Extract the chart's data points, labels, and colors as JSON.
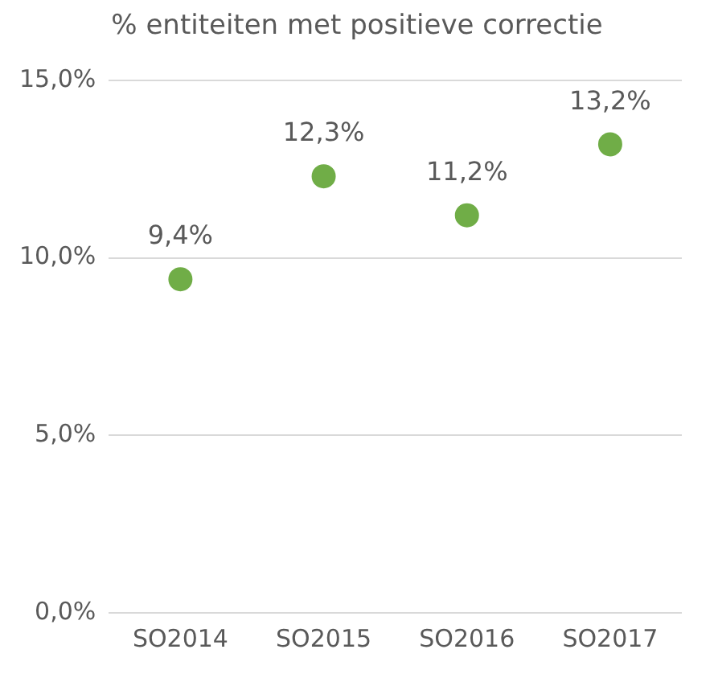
{
  "chart_data": {
    "type": "scatter",
    "title": "% entiteiten met positieve correctie",
    "categories": [
      "SO2014",
      "SO2015",
      "SO2016",
      "SO2017"
    ],
    "values": [
      9.4,
      12.3,
      11.2,
      13.2
    ],
    "value_labels": [
      "9,4%",
      "12,3%",
      "11,2%",
      "13,2%"
    ],
    "color": "#70ad47",
    "marker": "circle",
    "ylim": [
      0,
      15
    ],
    "yticks": [
      {
        "value": 0,
        "label": "0,0%"
      },
      {
        "value": 5,
        "label": "5,0%"
      },
      {
        "value": 10,
        "label": "10,0%"
      },
      {
        "value": 15,
        "label": "15,0%"
      }
    ],
    "grid": "y"
  }
}
